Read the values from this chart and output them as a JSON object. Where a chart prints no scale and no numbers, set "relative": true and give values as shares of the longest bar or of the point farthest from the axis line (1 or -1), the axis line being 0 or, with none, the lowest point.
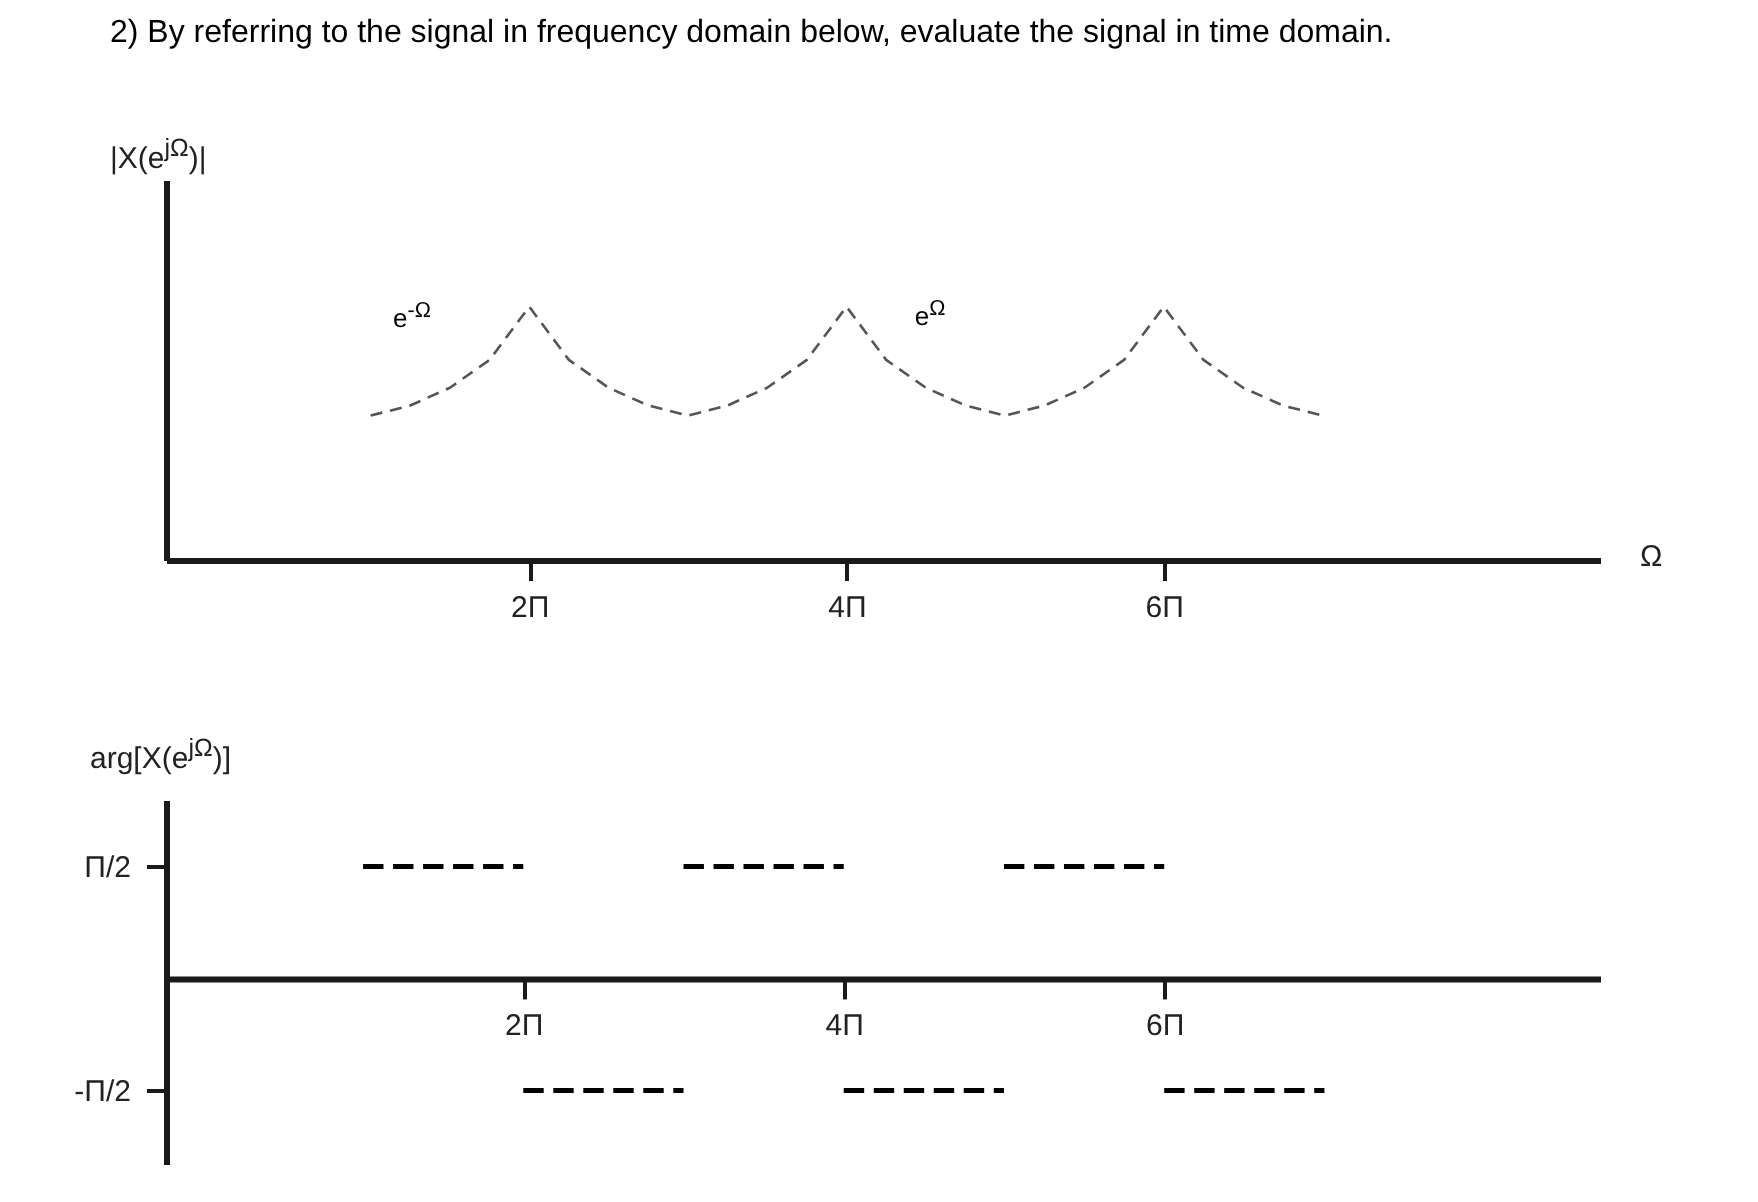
{
  "chart_data": [
    {
      "type": "line",
      "title": "2) By referring to the signal in frequency domain below, evaluate the signal in time domain.",
      "relative": true,
      "xlabel": "Ω",
      "ylabel": "|X(e$^{jΩ}$)|",
      "xlim": [
        -0.29,
        8.75
      ],
      "xticks": [
        {
          "value": 2,
          "label": "2Π"
        },
        {
          "value": 4,
          "label": "4Π"
        },
        {
          "value": 6,
          "label": "6Π"
        }
      ],
      "x": [
        1,
        1.25,
        1.5,
        1.75,
        2,
        2.25,
        2.5,
        2.75,
        3,
        3.25,
        3.5,
        3.75,
        4,
        4.25,
        4.5,
        4.75,
        5,
        5.25,
        5.5,
        5.75,
        6,
        6.25,
        6.5,
        6.75,
        7
      ],
      "series": [
        {
          "color": "#555555",
          "values": [
            0.57,
            0.61,
            0.68,
            0.79,
            1,
            0.79,
            0.68,
            0.61,
            0.57,
            0.61,
            0.68,
            0.79,
            1,
            0.79,
            0.68,
            0.61,
            0.57,
            0.61,
            0.68,
            0.79,
            1,
            0.79,
            0.68,
            0.61,
            0.57
          ]
        }
      ],
      "annotations": [
        "e$^{-Ω}$",
        "e$^{Ω}$"
      ],
      "grid": false,
      "legend": false,
      "marker": "none",
      "line_style": "dashed"
    },
    {
      "type": "line",
      "ylabel": "arg[X(e$^{jΩ}$)]",
      "xlim": [
        -0.23,
        8.72
      ],
      "ylim": [
        -2.6,
        2.5
      ],
      "xticks": [
        {
          "value": 2,
          "label": "2Π"
        },
        {
          "value": 4,
          "label": "4Π"
        },
        {
          "value": 6,
          "label": "6Π"
        }
      ],
      "yticks": [
        {
          "value": 1.57,
          "label": "Π/2"
        },
        {
          "value": -1.57,
          "label": "-Π/2"
        }
      ],
      "series": [
        {
          "color": "#000000",
          "x": [
            1,
            2,
            2.25,
            3,
            4,
            4.25,
            5,
            6
          ],
          "values": [
            1.57,
            1.57,
            null,
            1.57,
            1.57,
            null,
            1.57,
            1.57
          ]
        },
        {
          "color": "#000000",
          "x": [
            2,
            3,
            3.25,
            4,
            5,
            5.25,
            6,
            7
          ],
          "values": [
            -1.57,
            -1.57,
            null,
            -1.57,
            -1.57,
            null,
            -1.57,
            -1.57
          ]
        }
      ],
      "grid": false,
      "legend": false,
      "marker": "none",
      "line_style": "dashed"
    }
  ]
}
